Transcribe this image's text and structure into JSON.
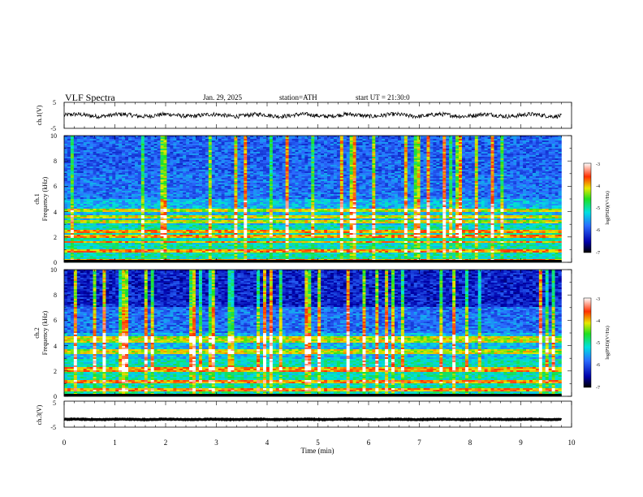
{
  "header": {
    "title": "VLF Spectra",
    "date": "Jan. 29, 2025",
    "station": "station=ATH",
    "start_ut": "start UT =   21:30:0"
  },
  "chart_data": [
    {
      "type": "line",
      "panel": "ch1-waveform",
      "ylabel": "ch.1(V)",
      "ylim": [
        -5,
        5
      ],
      "yticks": [
        "5",
        "-5"
      ],
      "xlim": [
        0,
        10
      ],
      "data_end_min": 9.8,
      "baseline": 0.0,
      "color": "#000000"
    },
    {
      "type": "heatmap",
      "panel": "ch1-spectrogram",
      "ylabel": "ch.1",
      "ylabel2": "Frequency  (kHz)",
      "ylim": [
        0,
        10
      ],
      "yticks": [
        "0",
        "2",
        "4",
        "6",
        "8",
        "10"
      ],
      "xlim": [
        0,
        10
      ],
      "data_end_min": 9.8,
      "bright_bands_khz": [
        0.2,
        0.9,
        1.6,
        2.1,
        2.4,
        3.2,
        3.6,
        4.1
      ],
      "colorbar": {
        "label": "log(PSD)(V²/Hz)",
        "range": [
          -7,
          -3
        ],
        "ticks": [
          "-3",
          "-4",
          "-5",
          "-6",
          "-7"
        ]
      }
    },
    {
      "type": "heatmap",
      "panel": "ch2-spectrogram",
      "ylabel": "ch.2",
      "ylabel2": "Frequency  (kHz)",
      "ylim": [
        0,
        10
      ],
      "yticks": [
        "0",
        "2",
        "4",
        "6",
        "8",
        "10"
      ],
      "xlim": [
        0,
        10
      ],
      "data_end_min": 9.8,
      "bright_bands_khz": [
        0.5,
        1.2,
        2.0,
        2.2,
        3.4,
        3.6,
        4.4,
        4.6
      ],
      "colorbar": {
        "label": "log(PSD)(V²/Hz)",
        "range": [
          -7,
          -3
        ],
        "ticks": [
          "-3",
          "-4",
          "-5",
          "-6",
          "-7"
        ]
      }
    },
    {
      "type": "line",
      "panel": "ch3-waveform",
      "ylabel": "ch.3(V)",
      "ylim": [
        -5,
        5
      ],
      "yticks": [
        "5",
        "-5"
      ],
      "xlim": [
        0,
        10
      ],
      "data_end_min": 9.8,
      "baseline": -2.0,
      "color": "#000000"
    }
  ],
  "x_axis": {
    "xlabel": "Time  (min)",
    "ticks": [
      "0",
      "1",
      "2",
      "3",
      "4",
      "5",
      "6",
      "7",
      "8",
      "9",
      "10"
    ]
  }
}
